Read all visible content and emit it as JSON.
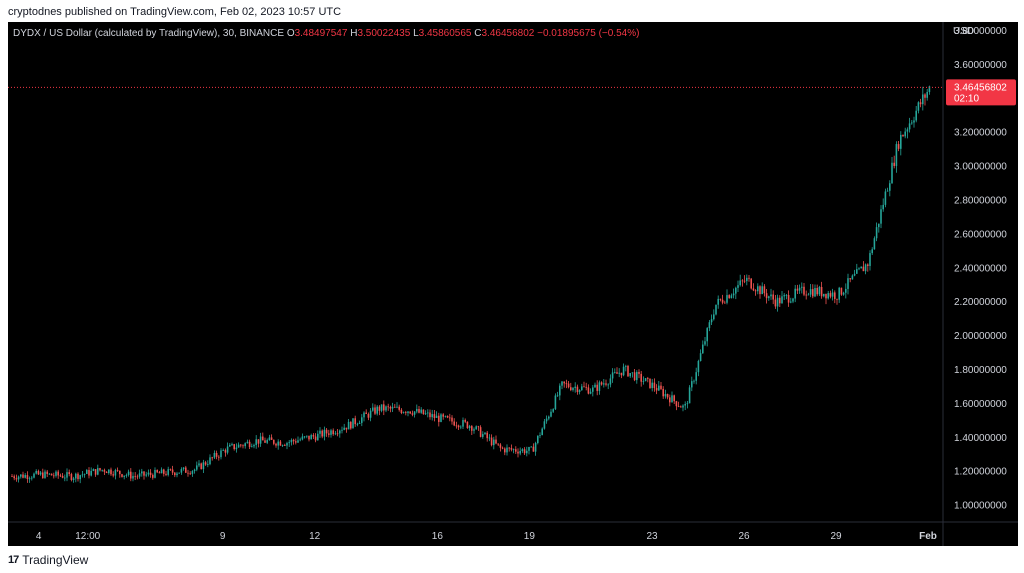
{
  "header": {
    "publish_text": "cryptodnes published on TradingView.com, Feb 02, 2023 10:57 UTC"
  },
  "legend": {
    "symbol": "DYDX / US Dollar (calculated by TradingView), 30, BINANCE",
    "open_label": "O",
    "open": "3.48497547",
    "high_label": "H",
    "high": "3.50022435",
    "low_label": "L",
    "low": "3.45860565",
    "close_label": "C",
    "close": "3.46456802",
    "change": "−0.01895675 (−0.54%)"
  },
  "price_tag": {
    "price": "3.46456802",
    "countdown": "02:10"
  },
  "footer": {
    "logo_text": "17",
    "brand": "TradingView"
  },
  "colors": {
    "up": "#26a69a",
    "down": "#ef5350",
    "background": "#000000",
    "axis_text": "#d1d4dc",
    "price_tag": "#f23645"
  },
  "chart_data": {
    "type": "line",
    "title": "DYDX / US Dollar (calculated by TradingView), 30, BINANCE",
    "currency": "USD",
    "ylim": [
      0.9,
      3.85
    ],
    "y_ticks": [
      "1.00000000",
      "1.20000000",
      "1.40000000",
      "1.60000000",
      "1.80000000",
      "2.00000000",
      "2.20000000",
      "2.40000000",
      "2.60000000",
      "2.80000000",
      "3.00000000",
      "3.20000000",
      "3.60000000",
      "3.80000000"
    ],
    "x_ticks": [
      "4",
      "12:00",
      "9",
      "12",
      "16",
      "19",
      "23",
      "26",
      "29",
      "Feb"
    ],
    "series": [
      {
        "values": [
          {
            "x": "Jan 03",
            "y": 1.17
          },
          {
            "x": "Jan 04",
            "y": 1.18
          },
          {
            "x": "Jan 05",
            "y": 1.17
          },
          {
            "x": "Jan 06",
            "y": 1.21
          },
          {
            "x": "Jan 07",
            "y": 1.17
          },
          {
            "x": "Jan 08",
            "y": 1.19
          },
          {
            "x": "Jan 09",
            "y": 1.21
          },
          {
            "x": "Jan 10",
            "y": 1.33
          },
          {
            "x": "Jan 11",
            "y": 1.38
          },
          {
            "x": "Jan 12",
            "y": 1.37
          },
          {
            "x": "Jan 13",
            "y": 1.41
          },
          {
            "x": "Jan 14",
            "y": 1.47
          },
          {
            "x": "Jan 15",
            "y": 1.57
          },
          {
            "x": "Jan 16",
            "y": 1.56
          },
          {
            "x": "Jan 17",
            "y": 1.51
          },
          {
            "x": "Jan 18",
            "y": 1.47
          },
          {
            "x": "Jan 19",
            "y": 1.33
          },
          {
            "x": "Jan 20",
            "y": 1.32
          },
          {
            "x": "Jan 21",
            "y": 1.71
          },
          {
            "x": "Jan 22",
            "y": 1.68
          },
          {
            "x": "Jan 23",
            "y": 1.8
          },
          {
            "x": "Jan 24",
            "y": 1.7
          },
          {
            "x": "Jan 25",
            "y": 1.57
          },
          {
            "x": "Jan 26",
            "y": 2.18
          },
          {
            "x": "Jan 27",
            "y": 2.33
          },
          {
            "x": "Jan 28",
            "y": 2.2
          },
          {
            "x": "Jan 29",
            "y": 2.27
          },
          {
            "x": "Jan 30",
            "y": 2.24
          },
          {
            "x": "Jan 31",
            "y": 2.43
          },
          {
            "x": "Feb 01",
            "y": 3.15
          },
          {
            "x": "Feb 02",
            "y": 3.46
          }
        ]
      }
    ]
  }
}
